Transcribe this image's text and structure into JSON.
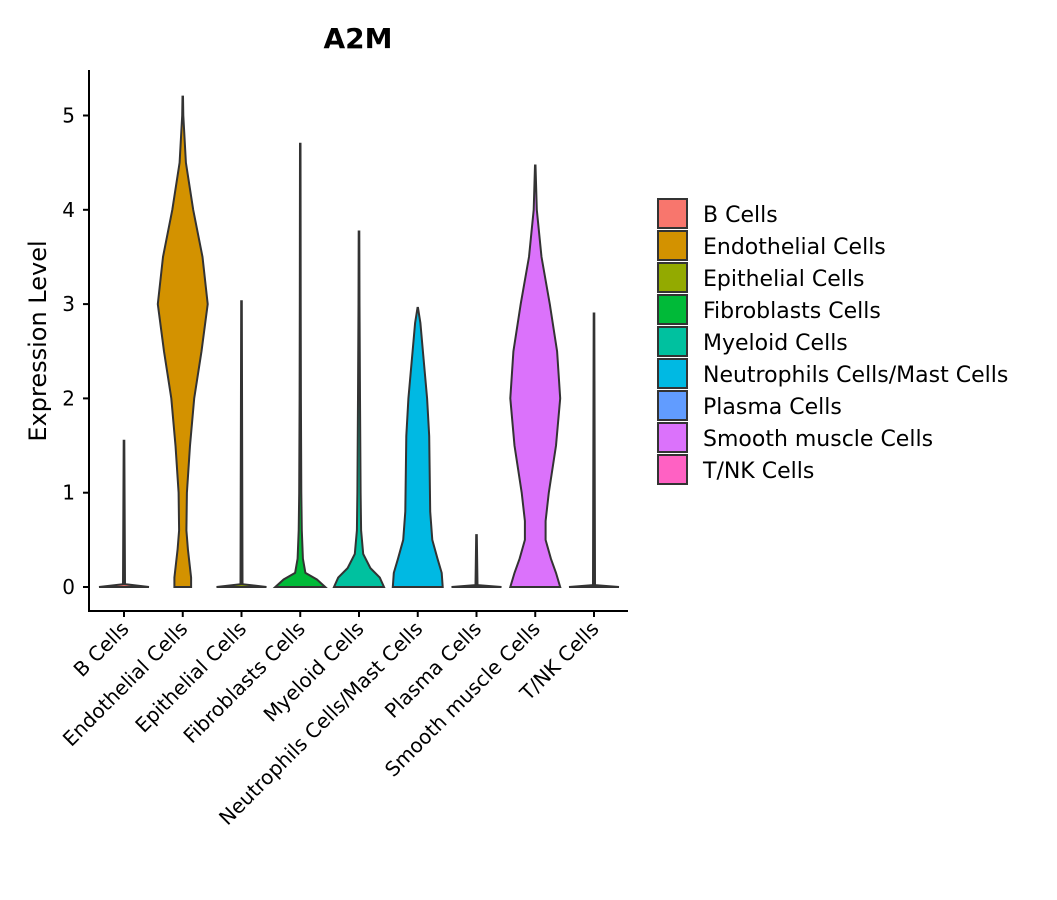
{
  "chart_data": {
    "type": "violin",
    "title": "A2M",
    "xlabel": "",
    "ylabel": "Expression Level",
    "ylim": [
      -0.25,
      5.5
    ],
    "yticks": [
      0,
      1,
      2,
      3,
      4,
      5
    ],
    "legend_position": "right",
    "categories": [
      "B Cells",
      "Endothelial Cells",
      "Epithelial Cells",
      "Fibroblasts Cells",
      "Myeloid Cells",
      "Neutrophils Cells/Mast Cells",
      "Plasma Cells",
      "Smooth muscle Cells",
      "T/NK Cells"
    ],
    "colors": [
      "#F8766D",
      "#D39200",
      "#93AA00",
      "#00BA38",
      "#00C19F",
      "#00B9E3",
      "#619CFF",
      "#DB72FB",
      "#FF61C3"
    ],
    "violins": [
      {
        "name": "B Cells",
        "max": 1.55,
        "profile": [
          [
            0,
            0.48
          ],
          [
            0.03,
            0.02
          ],
          [
            1.55,
            0.005
          ]
        ]
      },
      {
        "name": "Endothelial Cells",
        "max": 5.2,
        "profile": [
          [
            0,
            0.16
          ],
          [
            0.1,
            0.16
          ],
          [
            0.4,
            0.1
          ],
          [
            0.6,
            0.07
          ],
          [
            1.0,
            0.08
          ],
          [
            1.5,
            0.14
          ],
          [
            2.0,
            0.22
          ],
          [
            2.5,
            0.36
          ],
          [
            3.0,
            0.48
          ],
          [
            3.5,
            0.38
          ],
          [
            4.0,
            0.2
          ],
          [
            4.5,
            0.06
          ],
          [
            5.0,
            0.01
          ],
          [
            5.2,
            0.005
          ]
        ]
      },
      {
        "name": "Epithelial Cells",
        "max": 3.03,
        "profile": [
          [
            0,
            0.48
          ],
          [
            0.03,
            0.02
          ],
          [
            3.03,
            0.005
          ]
        ]
      },
      {
        "name": "Fibroblasts Cells",
        "max": 4.7,
        "profile": [
          [
            0,
            0.48
          ],
          [
            0.08,
            0.32
          ],
          [
            0.15,
            0.1
          ],
          [
            0.3,
            0.05
          ],
          [
            0.6,
            0.03
          ],
          [
            1.0,
            0.02
          ],
          [
            2.0,
            0.012
          ],
          [
            3.0,
            0.008
          ],
          [
            4.7,
            0.005
          ]
        ]
      },
      {
        "name": "Myeloid Cells",
        "max": 3.77,
        "profile": [
          [
            0,
            0.48
          ],
          [
            0.1,
            0.4
          ],
          [
            0.2,
            0.22
          ],
          [
            0.35,
            0.08
          ],
          [
            0.6,
            0.04
          ],
          [
            1.0,
            0.03
          ],
          [
            2.0,
            0.02
          ],
          [
            3.0,
            0.01
          ],
          [
            3.77,
            0.005
          ]
        ]
      },
      {
        "name": "Neutrophils Cells/Mast Cells",
        "max": 2.96,
        "profile": [
          [
            0,
            0.48
          ],
          [
            0.15,
            0.46
          ],
          [
            0.3,
            0.38
          ],
          [
            0.5,
            0.28
          ],
          [
            0.8,
            0.24
          ],
          [
            1.2,
            0.23
          ],
          [
            1.6,
            0.22
          ],
          [
            2.0,
            0.18
          ],
          [
            2.5,
            0.1
          ],
          [
            2.8,
            0.05
          ],
          [
            2.96,
            0.005
          ]
        ]
      },
      {
        "name": "Plasma Cells",
        "max": 0.55,
        "profile": [
          [
            0,
            0.48
          ],
          [
            0.02,
            0.02
          ],
          [
            0.55,
            0.005
          ]
        ]
      },
      {
        "name": "Smooth muscle Cells",
        "max": 4.47,
        "profile": [
          [
            0,
            0.48
          ],
          [
            0.15,
            0.4
          ],
          [
            0.3,
            0.3
          ],
          [
            0.5,
            0.2
          ],
          [
            0.7,
            0.2
          ],
          [
            1.0,
            0.26
          ],
          [
            1.5,
            0.4
          ],
          [
            2.0,
            0.48
          ],
          [
            2.5,
            0.42
          ],
          [
            3.0,
            0.28
          ],
          [
            3.5,
            0.12
          ],
          [
            4.0,
            0.03
          ],
          [
            4.47,
            0.005
          ]
        ]
      },
      {
        "name": "T/NK Cells",
        "max": 2.9,
        "profile": [
          [
            0,
            0.48
          ],
          [
            0.02,
            0.02
          ],
          [
            2.9,
            0.005
          ]
        ]
      }
    ]
  }
}
